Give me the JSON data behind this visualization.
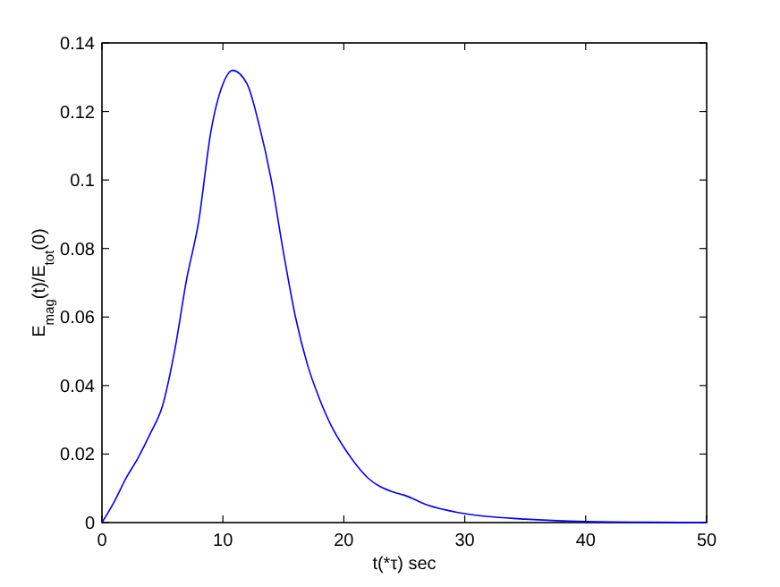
{
  "chart_data": {
    "type": "line",
    "xlabel": "t(*τ) sec",
    "ylabel": "E$_{mag}$(t)/E$_{tot}$(0)",
    "xlim": [
      0,
      50
    ],
    "ylim": [
      0,
      0.14
    ],
    "xticks": [
      0,
      10,
      20,
      30,
      40,
      50
    ],
    "yticks": [
      0,
      0.02,
      0.04,
      0.06,
      0.08,
      0.1,
      0.12,
      0.14
    ],
    "grid": false,
    "series": [
      {
        "color": "#0000ff",
        "x": [
          0,
          1,
          2,
          3,
          4,
          5,
          6,
          7,
          8,
          9,
          10,
          10.8,
          12,
          13,
          14,
          15,
          16,
          17,
          18,
          19,
          20,
          21,
          22,
          24,
          25,
          27,
          30,
          35,
          40,
          45,
          50
        ],
        "values": [
          0,
          0.006,
          0.013,
          0.019,
          0.026,
          0.034,
          0.05,
          0.071,
          0.088,
          0.114,
          0.128,
          0.132,
          0.128,
          0.116,
          0.1,
          0.079,
          0.06,
          0.046,
          0.036,
          0.028,
          0.022,
          0.017,
          0.013,
          0.009,
          0.008,
          0.005,
          0.0026,
          0.001,
          0.0003,
          0.0001,
          0
        ]
      }
    ]
  }
}
